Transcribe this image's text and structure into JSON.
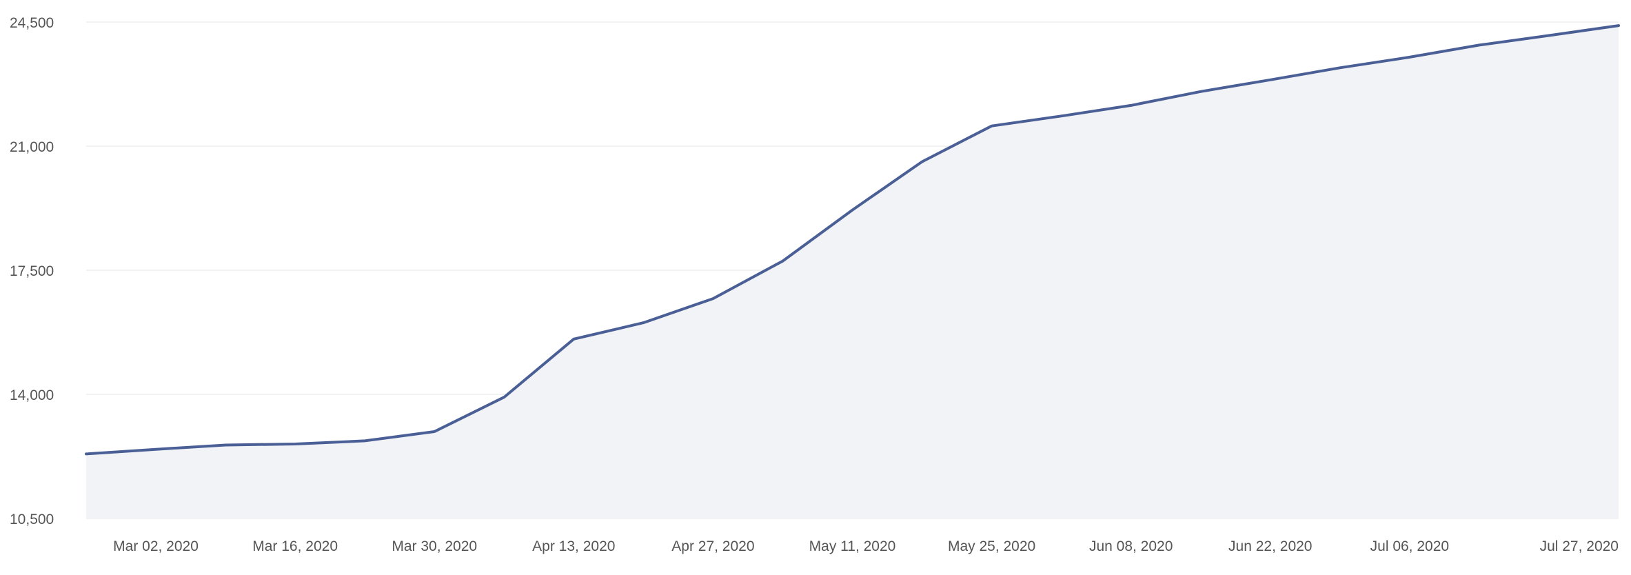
{
  "chart_data": {
    "type": "area",
    "title": "",
    "xlabel": "",
    "ylabel": "",
    "ylim": [
      10500,
      24500
    ],
    "y_ticks": [
      "10,500",
      "14,000",
      "17,500",
      "21,000",
      "24,500"
    ],
    "y_tick_values": [
      10500,
      14000,
      17500,
      21000,
      24500
    ],
    "x_ticks": [
      "Mar 02, 2020",
      "Mar 16, 2020",
      "Mar 30, 2020",
      "Apr 13, 2020",
      "Apr 27, 2020",
      "May 11, 2020",
      "May 25, 2020",
      "Jun 08, 2020",
      "Jun 22, 2020",
      "Jul 06, 2020",
      "Jul 27, 2020"
    ],
    "x_tick_dates": [
      "2020-03-02",
      "2020-03-16",
      "2020-03-30",
      "2020-04-13",
      "2020-04-27",
      "2020-05-11",
      "2020-05-25",
      "2020-06-08",
      "2020-06-22",
      "2020-07-06",
      "2020-07-27"
    ],
    "x_range": [
      "2020-02-24",
      "2020-07-27"
    ],
    "grid": true,
    "legend": "none",
    "series": [
      {
        "x": [
          "2020-02-24",
          "2020-03-02",
          "2020-03-09",
          "2020-03-16",
          "2020-03-23",
          "2020-03-30",
          "2020-04-06",
          "2020-04-13",
          "2020-04-20",
          "2020-04-27",
          "2020-05-04",
          "2020-05-11",
          "2020-05-18",
          "2020-05-25",
          "2020-06-01",
          "2020-06-08",
          "2020-06-15",
          "2020-06-22",
          "2020-06-29",
          "2020-07-06",
          "2020-07-13",
          "2020-07-20",
          "2020-07-27"
        ],
        "values": [
          12320,
          12450,
          12570,
          12600,
          12690,
          12950,
          13920,
          15560,
          16020,
          16700,
          17760,
          19200,
          20560,
          21570,
          21850,
          22150,
          22540,
          22870,
          23210,
          23510,
          23850,
          24120,
          24400
        ],
        "color": "#4a5f96",
        "fill": "#f2f3f7"
      }
    ]
  }
}
